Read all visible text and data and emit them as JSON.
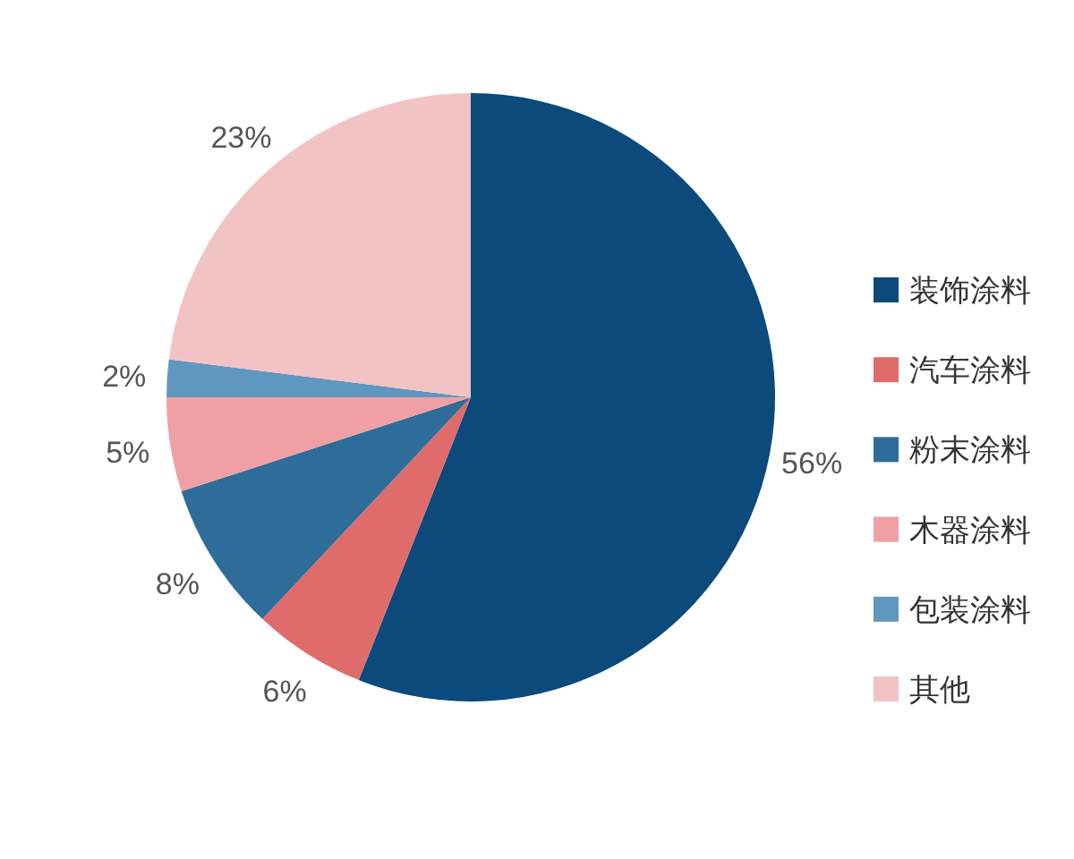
{
  "chart_data": {
    "type": "pie",
    "categories": [
      "装饰涂料",
      "汽车涂料",
      "粉末涂料",
      "木器涂料",
      "包装涂料",
      "其他"
    ],
    "values": [
      56,
      6,
      8,
      5,
      2,
      23
    ],
    "colors": [
      "#0b4a7b",
      "#e06b6b",
      "#2e6d99",
      "#f09fa4",
      "#5f97bf",
      "#f2c3c5"
    ],
    "value_labels": [
      "56%",
      "6%",
      "8%",
      "5%",
      "2%",
      "23%"
    ],
    "legend": "right"
  }
}
